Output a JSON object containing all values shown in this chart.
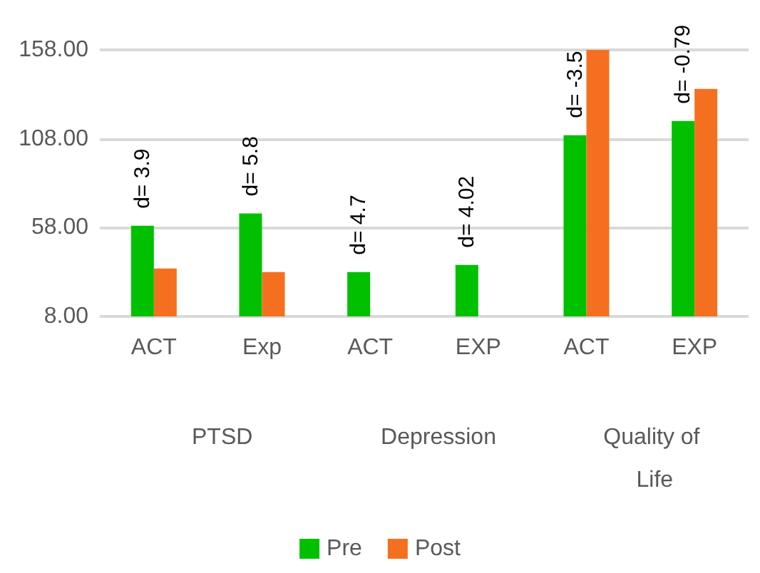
{
  "chart_data": {
    "type": "bar",
    "categories": [
      "ACT",
      "Exp",
      "ACT",
      "EXP",
      "ACT",
      "EXP"
    ],
    "series": [
      {
        "name": "Pre",
        "color": "#00c000",
        "values": [
          59,
          66,
          33,
          37,
          110,
          118
        ]
      },
      {
        "name": "Post",
        "color": "#f47020",
        "values": [
          35,
          33,
          8,
          8,
          158,
          136
        ]
      }
    ],
    "ylim": [
      8,
      158
    ],
    "yticks": [
      {
        "value": 8,
        "label": "8.00"
      },
      {
        "value": 58,
        "label": "58.00"
      },
      {
        "value": 108,
        "label": "108.00"
      },
      {
        "value": 158,
        "label": "158.00"
      }
    ],
    "annotations": [
      "d= 3.9",
      "d= 5.8",
      "d= 4.7",
      "d= 4.02",
      "d= -3.5",
      "d= -0.79",
      "PTSD",
      "Depression",
      "Quality of Life"
    ],
    "grid": "y",
    "legend": "bottom"
  }
}
